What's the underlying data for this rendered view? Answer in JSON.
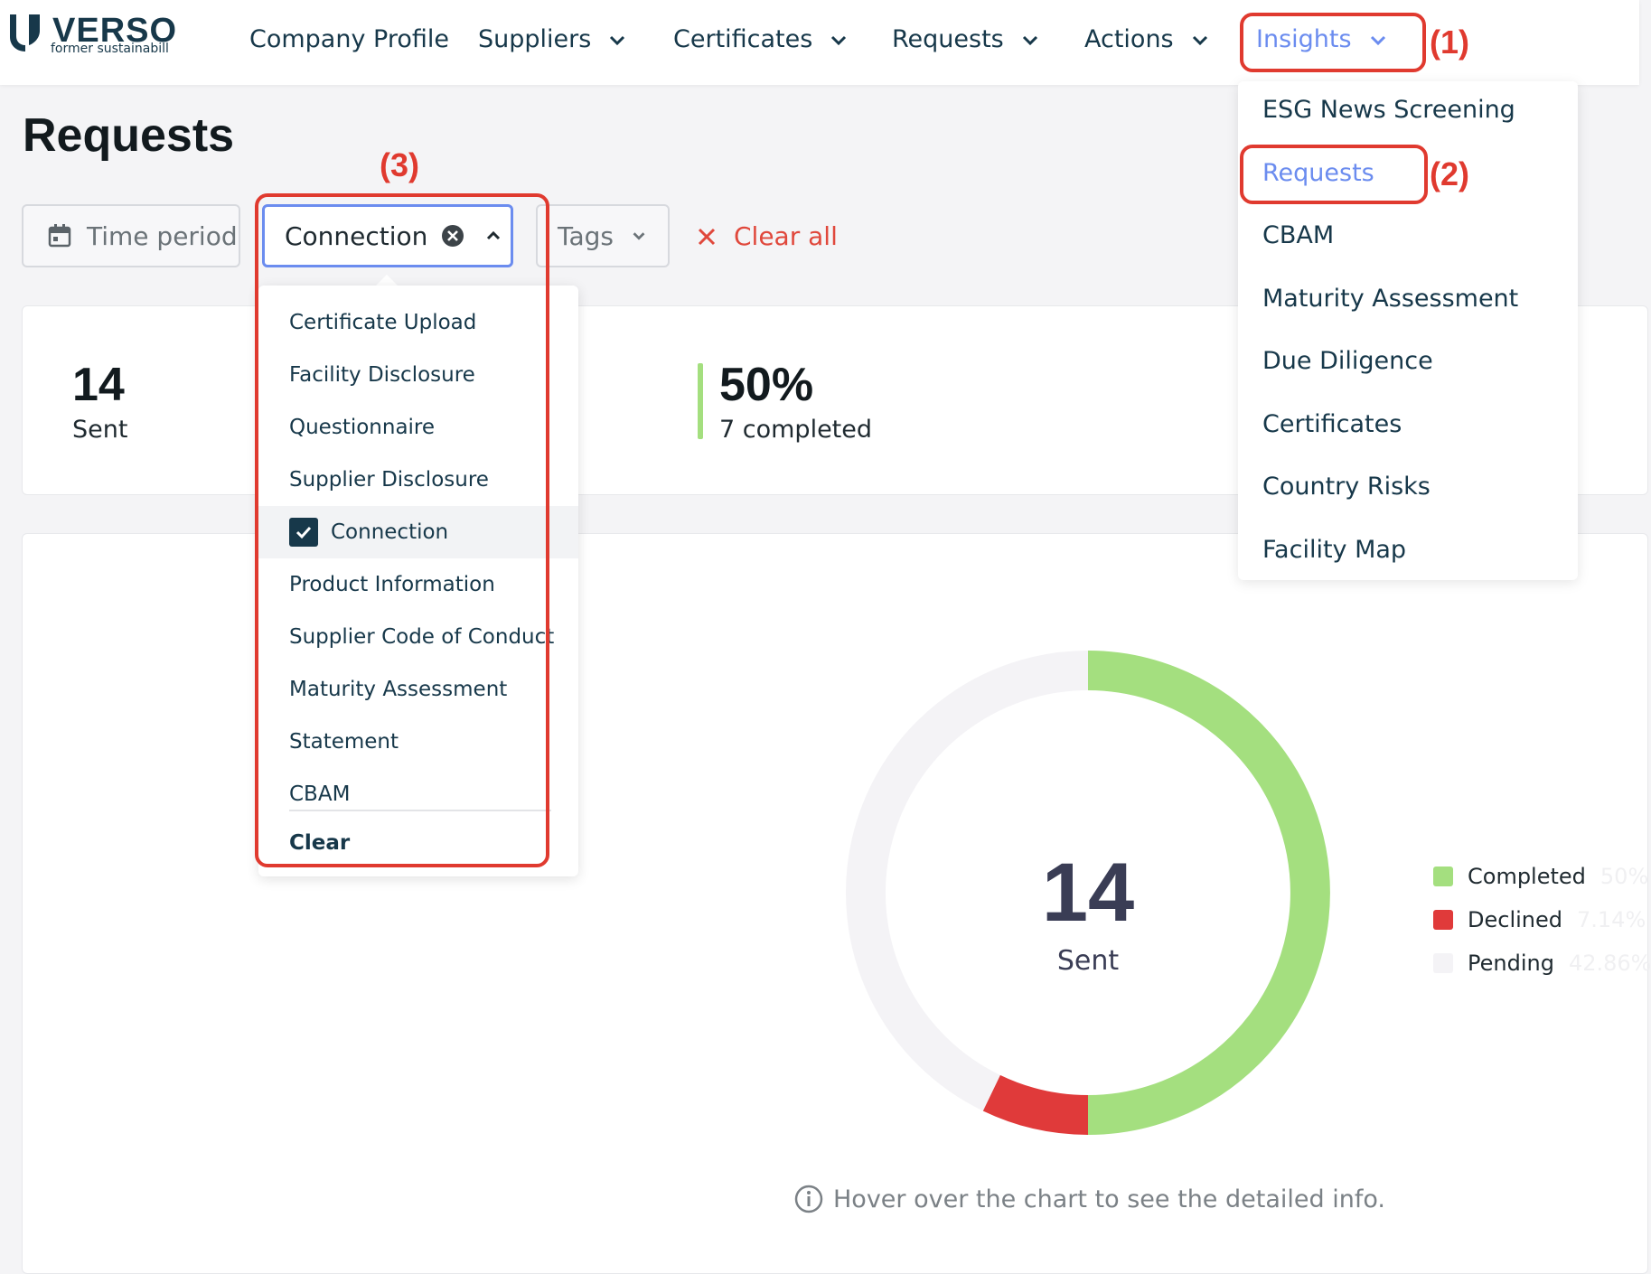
{
  "brand": {
    "name": "VERSO",
    "subtitle": "former sustainabill"
  },
  "nav": {
    "company_profile": "Company Profile",
    "suppliers": "Suppliers",
    "certificates": "Certificates",
    "requests": "Requests",
    "actions": "Actions",
    "insights": "Insights"
  },
  "annotations": {
    "a1": "(1)",
    "a2": "(2)",
    "a3": "(3)"
  },
  "page": {
    "title": "Requests"
  },
  "filters": {
    "time_period": "Time period",
    "connection": "Connection",
    "tags": "Tags",
    "clear_all": "Clear all"
  },
  "stats": {
    "sent_value": "14",
    "sent_label": "Sent",
    "completed_value": "50%",
    "completed_label": "7 completed"
  },
  "connection_dropdown": {
    "items": [
      "Certificate Upload",
      "Facility Disclosure",
      "Questionnaire",
      "Supplier Disclosure",
      "Connection",
      "Product Information",
      "Supplier Code of Conduct",
      "Maturity Assessment",
      "Statement",
      "CBAM"
    ],
    "checked": "Connection",
    "clear_label": "Clear"
  },
  "insights_menu": {
    "items": [
      "ESG News Screening",
      "Requests",
      "CBAM",
      "Maturity Assessment",
      "Due Diligence",
      "Certificates",
      "Country Risks",
      "Facility Map"
    ],
    "active": "Requests"
  },
  "chart_data": {
    "type": "pie",
    "center_value": "14",
    "center_label": "Sent",
    "categories": [
      "Completed",
      "Declined",
      "Pending"
    ],
    "values": [
      50,
      7.14,
      42.86
    ],
    "labels": [
      "50%",
      "7.14%",
      "42.86%"
    ],
    "colors": [
      "#a4df7f",
      "#e03a3a",
      "#f4f3f6"
    ],
    "hint": "Hover over the chart to see the detailed info."
  }
}
